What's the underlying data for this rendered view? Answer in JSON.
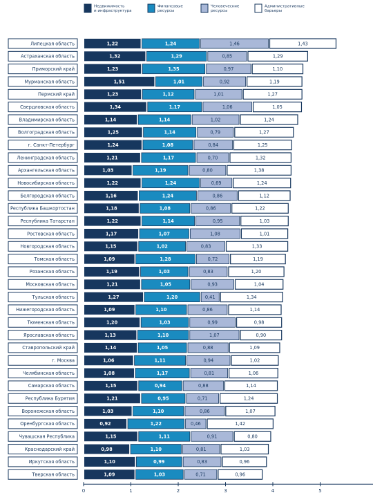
{
  "chart_data": {
    "type": "bar",
    "stacked": true,
    "orientation": "horizontal",
    "series": [
      {
        "name": "Недвижимость и инфраструктура",
        "label_lines": [
          "Недвижимость",
          "и инфраструктура"
        ],
        "color": "#17375e",
        "values": [
          1.22,
          1.32,
          1.23,
          1.51,
          1.23,
          1.34,
          1.14,
          1.25,
          1.24,
          1.21,
          1.03,
          1.22,
          1.16,
          1.18,
          1.22,
          1.17,
          1.15,
          1.09,
          1.19,
          1.21,
          1.27,
          1.09,
          1.2,
          1.13,
          1.14,
          1.06,
          1.08,
          1.15,
          1.21,
          1.03,
          0.92,
          1.15,
          0.98,
          1.1,
          1.09
        ]
      },
      {
        "name": "Финансовые ресурсы",
        "label_lines": [
          "Финансовые",
          "ресурсы"
        ],
        "color": "#1a8bc0",
        "values": [
          1.24,
          1.29,
          1.35,
          1.01,
          1.12,
          1.17,
          1.14,
          1.14,
          1.08,
          1.17,
          1.19,
          1.24,
          1.24,
          1.08,
          1.14,
          1.07,
          1.02,
          1.28,
          1.03,
          1.05,
          1.2,
          1.1,
          1.03,
          1.1,
          1.05,
          1.11,
          1.17,
          0.94,
          0.95,
          1.1,
          1.22,
          1.11,
          1.1,
          0.99,
          1.03
        ]
      },
      {
        "name": "Человеческие ресурсы",
        "label_lines": [
          "Человеческие",
          "ресурсы"
        ],
        "color": "#a9b8d8",
        "values": [
          1.46,
          0.85,
          0.97,
          0.92,
          1.01,
          1.06,
          1.02,
          0.79,
          0.84,
          0.7,
          0.8,
          0.69,
          0.86,
          0.86,
          0.95,
          1.08,
          0.83,
          0.72,
          0.83,
          0.93,
          0.41,
          0.86,
          0.99,
          1.07,
          0.88,
          0.94,
          0.81,
          0.88,
          0.71,
          0.86,
          0.46,
          0.91,
          0.81,
          0.83,
          0.71
        ]
      },
      {
        "name": "Административные барьеры",
        "label_lines": [
          "Административные",
          "барьеры"
        ],
        "color": "#ffffff",
        "values": [
          1.43,
          1.29,
          1.1,
          1.19,
          1.27,
          1.05,
          1.24,
          1.27,
          1.25,
          1.32,
          1.38,
          1.24,
          1.12,
          1.22,
          1.03,
          1.01,
          1.33,
          1.19,
          1.2,
          1.04,
          1.34,
          1.14,
          0.98,
          0.9,
          1.09,
          1.02,
          1.06,
          1.14,
          1.24,
          1.07,
          1.42,
          0.8,
          1.03,
          0.96,
          0.96
        ]
      }
    ],
    "categories": [
      "Липецкая область",
      "Астраханская область",
      "Приморский край",
      "Мурманская область",
      "Пермский край",
      "Свердловская область",
      "Владимирская область",
      "Волгоградская область",
      "г. Санкт-Петербург",
      "Ленинградская область",
      "Архангельская область",
      "Новосибирская область",
      "Белгородская область",
      "Республика Башкортостан",
      "Республика Татарстан",
      "Ростовская область",
      "Новгородская область",
      "Томская область",
      "Рязанская область",
      "Московская область",
      "Тульская область",
      "Нижегородская область",
      "Тюменская область",
      "Ярославская область",
      "Ставропольский край",
      "г. Москва",
      "Челябинская область",
      "Самарская область",
      "Республика Бурятия",
      "Воронежская область",
      "Оренбургская область",
      "Чувашская Республика",
      "Краснодарский край",
      "Иркутская область",
      "Тверская область"
    ],
    "xticks": [
      "0",
      "1",
      "2",
      "3",
      "4",
      "5"
    ],
    "xlim": [
      0,
      6
    ],
    "legend_position": "top"
  }
}
